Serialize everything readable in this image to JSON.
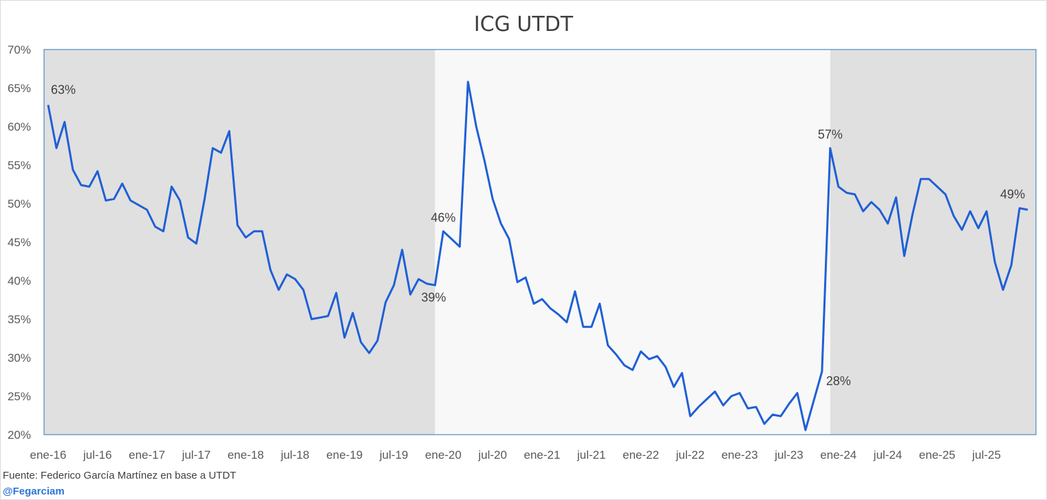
{
  "chart_data": {
    "type": "line",
    "title": "ICG UTDT",
    "xlabel": "",
    "ylabel": "",
    "ylim": [
      20,
      70
    ],
    "y_ticks": [
      "20%",
      "25%",
      "30%",
      "35%",
      "40%",
      "45%",
      "50%",
      "55%",
      "60%",
      "65%",
      "70%"
    ],
    "x_ticks": [
      "ene-16",
      "jul-16",
      "ene-17",
      "jul-17",
      "ene-18",
      "jul-18",
      "ene-19",
      "jul-19",
      "ene-20",
      "jul-20",
      "ene-21",
      "jul-21",
      "ene-22",
      "jul-22",
      "ene-23",
      "jul-23",
      "ene-24",
      "jul-24",
      "ene-25",
      "jul-25"
    ],
    "start_period": "ene-16",
    "background_bands": [
      {
        "from": "ene-16",
        "to": "dic-19",
        "color": "#e0e0e0"
      },
      {
        "from": "dic-19",
        "to": "dic-23",
        "color": "#f8f8f8"
      },
      {
        "from": "dic-23",
        "to": "nov-25",
        "color": "#e0e0e0"
      }
    ],
    "line_color": "#1f5fd6",
    "grid": false,
    "series": [
      {
        "values": [
          62.8,
          57.2,
          60.6,
          54.4,
          52.4,
          52.2,
          54.2,
          50.4,
          50.6,
          52.6,
          50.4,
          49.8,
          49.2,
          47.0,
          46.4,
          52.2,
          50.4,
          45.6,
          44.8,
          50.6,
          57.2,
          56.6,
          59.4,
          47.2,
          45.6,
          46.4,
          46.4,
          41.4,
          38.8,
          40.8,
          40.2,
          38.8,
          35.0,
          35.2,
          35.4,
          38.4,
          32.6,
          35.8,
          32.0,
          30.6,
          32.2,
          37.2,
          39.4,
          44.0,
          38.2,
          40.2,
          39.6,
          39.4,
          46.4,
          45.4,
          44.4,
          65.8,
          60.0,
          55.6,
          50.6,
          47.4,
          45.4,
          39.8,
          40.4,
          37.0,
          37.6,
          36.4,
          35.6,
          34.6,
          38.6,
          34.0,
          34.0,
          37.0,
          31.6,
          30.4,
          29.0,
          28.4,
          30.8,
          29.8,
          30.2,
          28.8,
          26.2,
          28.0,
          22.4,
          23.6,
          24.6,
          25.6,
          23.8,
          25.0,
          25.4,
          23.4,
          23.6,
          21.4,
          22.6,
          22.4,
          24.0,
          25.4,
          20.6,
          24.4,
          28.2,
          57.2,
          52.2,
          51.4,
          51.2,
          49.0,
          50.2,
          49.2,
          47.4,
          50.8,
          43.2,
          48.6,
          53.2,
          53.2,
          52.2,
          51.2,
          48.4,
          46.6,
          49.0,
          46.8,
          49.0,
          42.4,
          38.8,
          42.0,
          49.4,
          49.2
        ]
      }
    ],
    "data_labels": [
      {
        "index": 0,
        "text": "63%"
      },
      {
        "index": 47,
        "text": "39%"
      },
      {
        "index": 48,
        "text": "46%"
      },
      {
        "index": 94,
        "text": "28%"
      },
      {
        "index": 95,
        "text": "57%"
      },
      {
        "index": 118,
        "text": "49%"
      }
    ]
  },
  "footer": {
    "source": "Fuente: Federico García Martínez en base a UTDT",
    "handle": "@Fegarciam"
  }
}
